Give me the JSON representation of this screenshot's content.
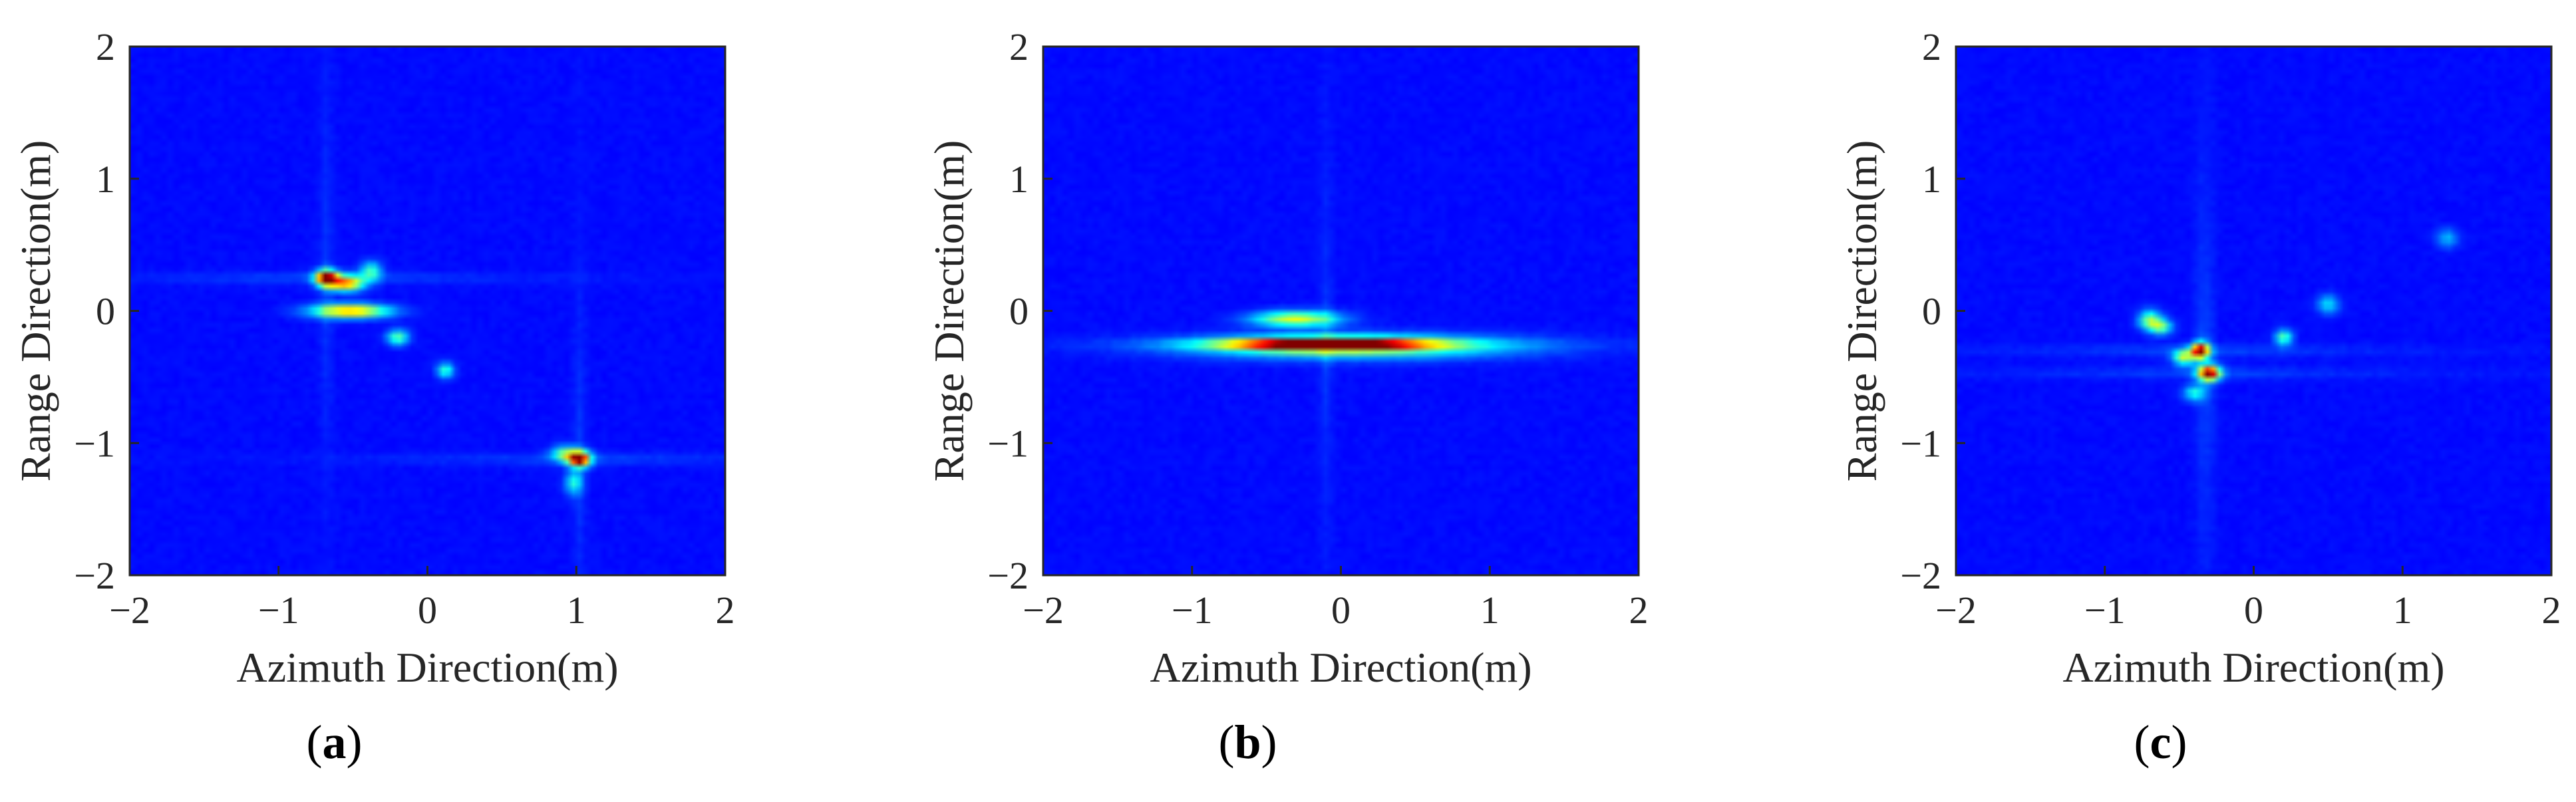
{
  "chart_data": [
    {
      "type": "heatmap",
      "panel_label": "a",
      "xlabel": "Azimuth Direction(m)",
      "ylabel": "Range Direction(m)",
      "xlim": [
        -2,
        2
      ],
      "ylim": [
        -2,
        2
      ],
      "xticks": [
        -2,
        -1,
        0,
        1,
        2
      ],
      "yticks": [
        -2,
        -1,
        0,
        1,
        2
      ],
      "xticklabels": [
        "−2",
        "−1",
        "0",
        "1",
        "2"
      ],
      "yticklabels": [
        "−2",
        "−1",
        "0",
        "1",
        "2"
      ],
      "colormap": "jet",
      "background": "#00008f",
      "scatterers": [
        {
          "x": -0.68,
          "y": 0.25,
          "intensity": 1.0,
          "sx": 0.05,
          "sy": 0.04
        },
        {
          "x": -0.55,
          "y": 0.21,
          "intensity": 0.72,
          "sx": 0.08,
          "sy": 0.04
        },
        {
          "x": -0.52,
          "y": 0.0,
          "intensity": 0.7,
          "sx": 0.18,
          "sy": 0.035
        },
        {
          "x": -0.38,
          "y": 0.3,
          "intensity": 0.35,
          "sx": 0.05,
          "sy": 0.05
        },
        {
          "x": -0.2,
          "y": -0.2,
          "intensity": 0.4,
          "sx": 0.05,
          "sy": 0.04
        },
        {
          "x": 0.12,
          "y": -0.45,
          "intensity": 0.35,
          "sx": 0.04,
          "sy": 0.04
        },
        {
          "x": 1.02,
          "y": -1.12,
          "intensity": 1.0,
          "sx": 0.05,
          "sy": 0.04
        },
        {
          "x": 0.92,
          "y": -1.08,
          "intensity": 0.4,
          "sx": 0.06,
          "sy": 0.04
        },
        {
          "x": 0.98,
          "y": -1.3,
          "intensity": 0.3,
          "sx": 0.04,
          "sy": 0.06
        }
      ]
    },
    {
      "type": "heatmap",
      "panel_label": "b",
      "xlabel": "Azimuth Direction(m)",
      "ylabel": "Range Direction(m)",
      "xlim": [
        -2,
        2
      ],
      "ylim": [
        -2,
        2
      ],
      "xticks": [
        -2,
        -1,
        0,
        1,
        2
      ],
      "yticks": [
        -2,
        -1,
        0,
        1,
        2
      ],
      "xticklabels": [
        "−2",
        "−1",
        "0",
        "1",
        "2"
      ],
      "yticklabels": [
        "−2",
        "−1",
        "0",
        "1",
        "2"
      ],
      "colormap": "jet",
      "background": "#00008f",
      "scatterers": [
        {
          "x": -0.1,
          "y": -0.25,
          "intensity": 1.0,
          "sx": 0.45,
          "sy": 0.03
        },
        {
          "x": -0.3,
          "y": -0.06,
          "intensity": 0.55,
          "sx": 0.2,
          "sy": 0.04
        },
        {
          "x": 0.1,
          "y": -0.27,
          "intensity": 0.45,
          "sx": 0.75,
          "sy": 0.06
        }
      ]
    },
    {
      "type": "heatmap",
      "panel_label": "c",
      "xlabel": "Azimuth Direction(m)",
      "ylabel": "Range Direction(m)",
      "xlim": [
        -2,
        2
      ],
      "ylim": [
        -2,
        2
      ],
      "xticks": [
        -2,
        -1,
        0,
        1,
        2
      ],
      "yticks": [
        -2,
        -1,
        0,
        1,
        2
      ],
      "xticklabels": [
        "−2",
        "−1",
        "0",
        "1",
        "2"
      ],
      "yticklabels": [
        "−2",
        "−1",
        "0",
        "1",
        "2"
      ],
      "colormap": "jet",
      "background": "#00008f",
      "scatterers": [
        {
          "x": -0.36,
          "y": -0.3,
          "intensity": 1.0,
          "sx": 0.04,
          "sy": 0.04
        },
        {
          "x": -0.3,
          "y": -0.47,
          "intensity": 0.95,
          "sx": 0.05,
          "sy": 0.04
        },
        {
          "x": -0.47,
          "y": -0.35,
          "intensity": 0.5,
          "sx": 0.05,
          "sy": 0.04
        },
        {
          "x": -0.7,
          "y": -0.07,
          "intensity": 0.45,
          "sx": 0.05,
          "sy": 0.05
        },
        {
          "x": -0.62,
          "y": -0.12,
          "intensity": 0.4,
          "sx": 0.05,
          "sy": 0.04
        },
        {
          "x": 0.2,
          "y": -0.2,
          "intensity": 0.4,
          "sx": 0.04,
          "sy": 0.04
        },
        {
          "x": -0.4,
          "y": -0.62,
          "intensity": 0.3,
          "sx": 0.05,
          "sy": 0.04
        },
        {
          "x": 0.5,
          "y": 0.05,
          "intensity": 0.25,
          "sx": 0.05,
          "sy": 0.05
        },
        {
          "x": 1.3,
          "y": 0.55,
          "intensity": 0.2,
          "sx": 0.05,
          "sy": 0.05
        }
      ]
    }
  ]
}
